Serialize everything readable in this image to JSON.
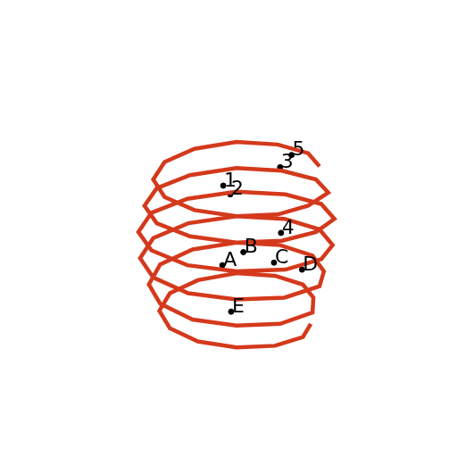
{
  "chart_data": {
    "type": "line",
    "xlim": [
      0,
      512
    ],
    "ylim": [
      0,
      512
    ],
    "grid": false,
    "tick_labels": false,
    "curve": {
      "color": "#d4391c",
      "x": [
        360,
        347,
        312,
        265,
        217,
        183,
        170,
        183,
        217,
        265,
        312,
        347,
        370,
        356,
        317,
        265,
        212,
        174,
        160,
        174,
        212,
        265,
        317,
        356,
        377,
        362,
        321,
        265,
        209,
        168,
        153,
        168,
        209,
        265,
        321,
        362,
        375,
        360,
        320,
        265,
        210,
        170,
        155,
        170,
        210,
        265,
        320,
        360,
        365,
        352,
        315,
        265,
        215,
        178,
        165,
        178,
        215,
        265,
        315,
        352,
        353,
        341,
        309,
        265,
        221,
        189,
        177,
        189,
        221,
        265,
        309,
        341,
        350
      ],
      "y": [
        327,
        342,
        352,
        355,
        347,
        332,
        312,
        292,
        277,
        270,
        272,
        282,
        297,
        312,
        322,
        325,
        317,
        302,
        282,
        262,
        247,
        240,
        242,
        252,
        267,
        284,
        295,
        298,
        290,
        274,
        252,
        231,
        214,
        207,
        209,
        221,
        237,
        255,
        267,
        270,
        262,
        245,
        222,
        200,
        182,
        175,
        177,
        190,
        207,
        225,
        237,
        240,
        232,
        215,
        192,
        170,
        152,
        145,
        147,
        160,
        177,
        192,
        202,
        205,
        197,
        182,
        162,
        142,
        127,
        120,
        122,
        132,
        147
      ]
    },
    "points": [
      {
        "label": "1",
        "x": 250,
        "y": 305
      },
      {
        "label": "2",
        "x": 258,
        "y": 295
      },
      {
        "label": "3",
        "x": 315,
        "y": 326
      },
      {
        "label": "4",
        "x": 316,
        "y": 251
      },
      {
        "label": "5",
        "x": 328,
        "y": 340
      },
      {
        "label": "A",
        "x": 249,
        "y": 214
      },
      {
        "label": "B",
        "x": 273,
        "y": 229
      },
      {
        "label": "C",
        "x": 308,
        "y": 217
      },
      {
        "label": "D",
        "x": 340,
        "y": 209
      },
      {
        "label": "E",
        "x": 259,
        "y": 161
      }
    ]
  }
}
